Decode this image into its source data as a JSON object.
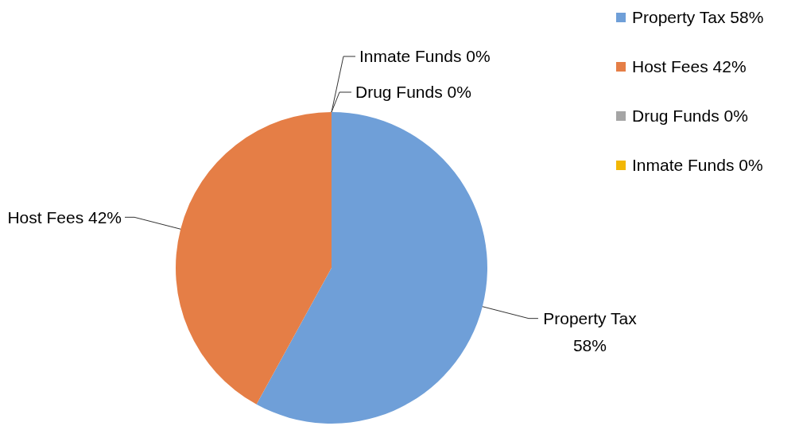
{
  "chart_data": {
    "type": "pie",
    "categories": [
      "Property Tax",
      "Host Fees",
      "Drug Funds",
      "Inmate Funds"
    ],
    "values": [
      58,
      42,
      0,
      0
    ],
    "colors": [
      "#6f9fd8",
      "#e57e46",
      "#a5a5a5",
      "#f2b705"
    ],
    "value_labels": [
      "58%",
      "42%",
      "0%",
      "0%"
    ],
    "legend": "top right"
  }
}
